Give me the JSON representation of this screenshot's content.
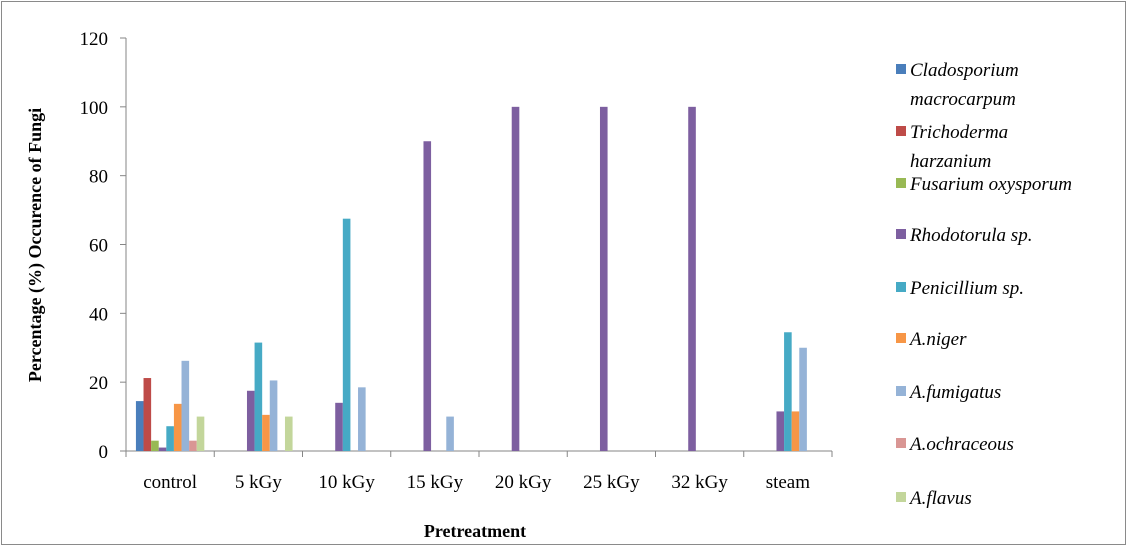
{
  "chart_data": {
    "type": "bar",
    "title": "",
    "xlabel": "Pretreatment",
    "ylabel": "Percentage (%) Occurence of Fungi",
    "ylim": [
      0,
      120
    ],
    "yticks": [
      "0",
      "20",
      "40",
      "60",
      "80",
      "100",
      "120"
    ],
    "grid": false,
    "legend_position": "right",
    "categories": [
      "control",
      "5 kGy",
      "10 kGy",
      "15 kGy",
      "20 kGy",
      "25 kGy",
      "32 kGy",
      "steam"
    ],
    "series": [
      {
        "name": "Cladosporium macrocarpum",
        "name_lines": [
          "Cladosporium",
          "macrocarpum"
        ],
        "color": "#4a7ebb",
        "values": [
          14.5,
          0,
          0,
          0,
          0,
          0,
          0,
          0
        ]
      },
      {
        "name": "Trichoderma harzanium",
        "name_lines": [
          "Trichoderma",
          "harzanium"
        ],
        "color": "#be4b48",
        "values": [
          21.2,
          0,
          0,
          0,
          0,
          0,
          0,
          0
        ]
      },
      {
        "name": "Fusarium oxysporum",
        "name_lines": [
          "Fusarium oxysporum"
        ],
        "color": "#98b954",
        "values": [
          3,
          0,
          0,
          0,
          0,
          0,
          0,
          0
        ]
      },
      {
        "name": "Rhodotorula sp.",
        "name_lines": [
          "Rhodotorula sp."
        ],
        "color": "#7d5fa0",
        "values": [
          1,
          17.5,
          14,
          90,
          100,
          100,
          100,
          11.5
        ]
      },
      {
        "name": "Penicillium sp.",
        "name_lines": [
          "Penicillium sp."
        ],
        "color": "#46aac5",
        "values": [
          7.2,
          31.5,
          67.5,
          0,
          0,
          0,
          0,
          34.5
        ]
      },
      {
        "name": "A.niger",
        "name_lines": [
          "A.niger"
        ],
        "color": "#f79646",
        "values": [
          13.7,
          10.5,
          0,
          0,
          0,
          0,
          0,
          11.5
        ]
      },
      {
        "name": "A.fumigatus",
        "name_lines": [
          "A.fumigatus"
        ],
        "color": "#95b3d7",
        "values": [
          26.2,
          20.5,
          18.5,
          10,
          0,
          0,
          0,
          30
        ]
      },
      {
        "name": "A.ochraceous",
        "name_lines": [
          "A.ochraceous"
        ],
        "color": "#d99694",
        "values": [
          3,
          0,
          0,
          0,
          0,
          0,
          0,
          0
        ]
      },
      {
        "name": "A.flavus",
        "name_lines": [
          "A.flavus"
        ],
        "color": "#c3d69b",
        "values": [
          10,
          10,
          0,
          0,
          0,
          0,
          0,
          0
        ]
      }
    ]
  }
}
